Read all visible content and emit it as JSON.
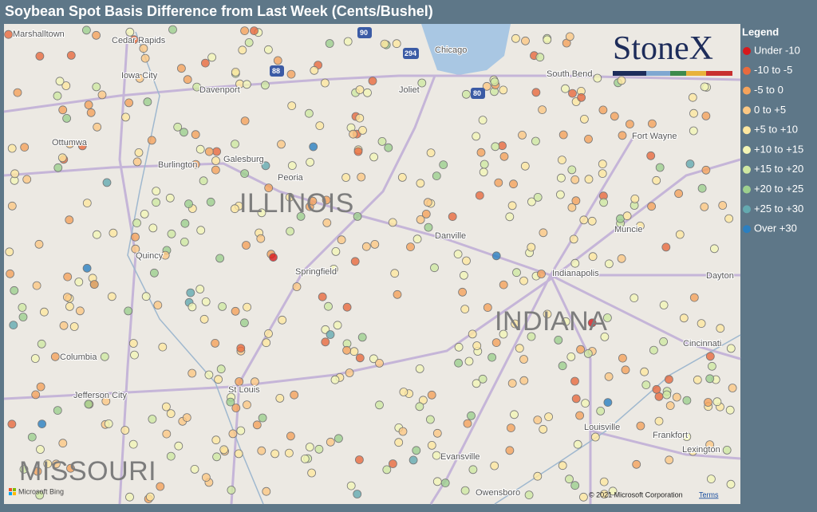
{
  "title": "Soybean Spot Basis Difference from Last Week (Cents/Bushel)",
  "legend": {
    "title": "Legend",
    "items": [
      {
        "label": "Under -10",
        "color": "#d7191c"
      },
      {
        "label": "-10 to -5",
        "color": "#e86a3e"
      },
      {
        "label": "-5 to 0",
        "color": "#f5a35c"
      },
      {
        "label": "0 to +5",
        "color": "#fcc884"
      },
      {
        "label": "+5 to +10",
        "color": "#fee7a0"
      },
      {
        "label": "+10 to +15",
        "color": "#f3f5b6"
      },
      {
        "label": "+15 to +20",
        "color": "#cfe8a2"
      },
      {
        "label": "+20 to +25",
        "color": "#9dd08e"
      },
      {
        "label": "+25 to +30",
        "color": "#64aab0"
      },
      {
        "label": "Over +30",
        "color": "#2b7fc0"
      }
    ]
  },
  "logo": "StoneX",
  "map_labels": {
    "cities": [
      "Marshalltown",
      "Cedar Rapids",
      "Iowa City",
      "Davenport",
      "Ottumwa",
      "Burlington",
      "Galesburg",
      "Peoria",
      "Quincy",
      "Springfield",
      "Danville",
      "Chicago",
      "South Bend",
      "Joliet",
      "Fort Wayne",
      "Muncie",
      "Indianapolis",
      "Dayton",
      "Cincinnati",
      "Columbia",
      "Jefferson City",
      "St Louis",
      "Louisville",
      "Frankfort",
      "Lexington",
      "Evansville",
      "Owensboro"
    ],
    "states": [
      "ILLINOIS",
      "INDIANA",
      "MISSOURI"
    ],
    "highways": [
      "90",
      "294",
      "88",
      "80"
    ]
  },
  "footer": {
    "provider": "Microsoft Bing",
    "copyright": "© 2021 Microsoft Corporation",
    "terms": "Terms"
  }
}
